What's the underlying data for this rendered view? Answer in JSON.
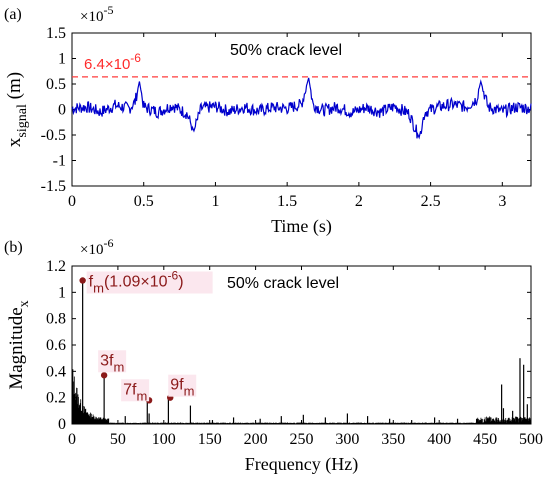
{
  "chart_data": [
    {
      "panel_label": "(a)",
      "type": "line",
      "annotation": "50% crack level",
      "xlabel": "Time (s)",
      "ylabel_main": "x",
      "ylabel_sub": "signal",
      "ylabel_unit": " (m)",
      "y_exponent_base": "×10",
      "y_exponent_power": "-5",
      "xlim": [
        0,
        3.2
      ],
      "ylim": [
        -1.5,
        1.5
      ],
      "xticks": [
        0,
        0.5,
        1,
        1.5,
        2,
        2.5,
        3
      ],
      "xtick_labels": [
        "0",
        "0.5",
        "1",
        "1.5",
        "2",
        "2.5",
        "3"
      ],
      "yticks": [
        -1.5,
        -1,
        -0.5,
        0,
        0.5,
        1,
        1.5
      ],
      "ytick_labels": [
        "-1.5",
        "-1",
        "-0.5",
        "0",
        "0.5",
        "1",
        "1.5"
      ],
      "threshold": {
        "value": 0.64,
        "label_mantissa": "6.4×10",
        "label_power": "-6"
      },
      "series": [
        {
          "color": "#0000cc",
          "points": [
            [
              0,
              0.02
            ],
            [
              0.1,
              0.05
            ],
            [
              0.2,
              -0.05
            ],
            [
              0.3,
              0.08
            ],
            [
              0.4,
              0.02
            ],
            [
              0.44,
              0.15
            ],
            [
              0.47,
              0.55
            ],
            [
              0.5,
              0.05
            ],
            [
              0.6,
              -0.05
            ],
            [
              0.7,
              0.08
            ],
            [
              0.8,
              -0.08
            ],
            [
              0.85,
              -0.42
            ],
            [
              0.9,
              0.02
            ],
            [
              1.0,
              0.06
            ],
            [
              1.1,
              -0.04
            ],
            [
              1.2,
              0.05
            ],
            [
              1.3,
              -0.03
            ],
            [
              1.4,
              0.04
            ],
            [
              1.5,
              0.02
            ],
            [
              1.6,
              0.1
            ],
            [
              1.65,
              0.62
            ],
            [
              1.68,
              0.1
            ],
            [
              1.75,
              -0.02
            ],
            [
              1.85,
              0.05
            ],
            [
              1.95,
              -0.06
            ],
            [
              2.05,
              0.04
            ],
            [
              2.15,
              -0.05
            ],
            [
              2.25,
              0.06
            ],
            [
              2.35,
              -0.08
            ],
            [
              2.42,
              -0.55
            ],
            [
              2.46,
              -0.05
            ],
            [
              2.55,
              0.05
            ],
            [
              2.65,
              0.1
            ],
            [
              2.75,
              0.05
            ],
            [
              2.82,
              0.2
            ],
            [
              2.85,
              0.55
            ],
            [
              2.9,
              0.05
            ],
            [
              3.0,
              -0.04
            ],
            [
              3.1,
              0.05
            ],
            [
              3.2,
              0.02
            ]
          ]
        }
      ]
    },
    {
      "panel_label": "(b)",
      "type": "line",
      "annotation": "50% crack level",
      "xlabel": "Frequency (Hz)",
      "ylabel_main": "Magnitude",
      "ylabel_sub": "x",
      "y_exponent_base": "×10",
      "y_exponent_power": "-6",
      "xlim": [
        0,
        500
      ],
      "ylim": [
        0,
        1.2
      ],
      "xticks": [
        0,
        50,
        100,
        150,
        200,
        250,
        300,
        350,
        400,
        450,
        500
      ],
      "xtick_labels": [
        "0",
        "50",
        "100",
        "150",
        "200",
        "250",
        "300",
        "350",
        "400",
        "450",
        "500"
      ],
      "yticks": [
        0,
        0.2,
        0.4,
        0.6,
        0.8,
        1,
        1.2
      ],
      "ytick_labels": [
        "0",
        "0.2",
        "0.4",
        "0.6",
        "0.8",
        "1",
        "1.2"
      ],
      "series": [
        {
          "color": "#000000",
          "x": [
            0,
            500
          ],
          "baseline": 0.01,
          "low_freq_decay": [
            [
              1,
              0.4
            ],
            [
              3,
              0.33
            ],
            [
              5,
              0.28
            ],
            [
              7,
              0.22
            ],
            [
              9,
              0.18
            ],
            [
              12,
              0.14
            ],
            [
              15,
              0.11
            ],
            [
              20,
              0.08
            ],
            [
              25,
              0.06
            ],
            [
              30,
              0.05
            ],
            [
              40,
              0.04
            ]
          ],
          "spikes": [
            [
              11.6,
              1.09
            ],
            [
              35,
              0.37
            ],
            [
              58,
              0.06
            ],
            [
              82,
              0.18
            ],
            [
              84,
              0.08
            ],
            [
              105,
              0.2
            ],
            [
              129,
              0.14
            ],
            [
              153,
              0.03
            ],
            [
              176,
              0.05
            ],
            [
              205,
              0.04
            ],
            [
              228,
              0.06
            ],
            [
              252,
              0.07
            ],
            [
              276,
              0.05
            ],
            [
              300,
              0.08
            ],
            [
              322,
              0.06
            ],
            [
              346,
              0.04
            ],
            [
              370,
              0.03
            ],
            [
              395,
              0.05
            ],
            [
              420,
              0.04
            ],
            [
              445,
              0.03
            ],
            [
              468,
              0.3
            ],
            [
              470,
              0.12
            ],
            [
              480,
              0.1
            ],
            [
              488,
              0.5
            ],
            [
              492,
              0.45
            ],
            [
              496,
              0.15
            ]
          ]
        }
      ],
      "markers": [
        {
          "x": 11.6,
          "y": 1.09,
          "label_main": "f",
          "label_sub": "m",
          "label_tail": "(1.09×10",
          "label_power": "-6",
          "label_close": ")"
        },
        {
          "x": 35,
          "y": 0.37,
          "label_main": "3f",
          "label_sub": "m"
        },
        {
          "x": 84,
          "y": 0.18,
          "label_main": "7f",
          "label_sub": "m"
        },
        {
          "x": 107,
          "y": 0.2,
          "label_main": "9f",
          "label_sub": "m"
        }
      ]
    }
  ]
}
